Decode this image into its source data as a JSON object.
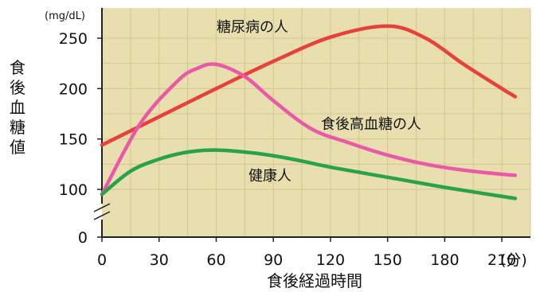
{
  "chart_data": {
    "type": "line",
    "xlabel": "食後経過時間",
    "ylabel": "食後血糖値",
    "y_unit": "(mg/dL)",
    "x_unit": "(分)",
    "xlim": [
      0,
      225
    ],
    "ylim": [
      100,
      270
    ],
    "axis_break": true,
    "grid": true,
    "background": "#e9dfae",
    "x_ticks": [
      "0",
      "30",
      "60",
      "90",
      "120",
      "150",
      "180",
      "210"
    ],
    "y_ticks": [
      "100",
      "150",
      "200",
      "250"
    ],
    "y_zero_label": "0",
    "series": [
      {
        "name": "糖尿病の人",
        "color": "#e8403a",
        "points": [
          [
            0,
            144
          ],
          [
            30,
            172
          ],
          [
            60,
            200
          ],
          [
            90,
            227
          ],
          [
            120,
            251
          ],
          [
            150,
            262
          ],
          [
            170,
            250
          ],
          [
            190,
            224
          ],
          [
            210,
            200
          ],
          [
            217,
            192
          ]
        ]
      },
      {
        "name": "食後高血糖の人",
        "color": "#e85aa8",
        "points": [
          [
            0,
            95
          ],
          [
            20,
            165
          ],
          [
            40,
            208
          ],
          [
            50,
            220
          ],
          [
            60,
            224
          ],
          [
            75,
            212
          ],
          [
            90,
            188
          ],
          [
            110,
            160
          ],
          [
            130,
            146
          ],
          [
            150,
            134
          ],
          [
            170,
            125
          ],
          [
            190,
            119
          ],
          [
            210,
            115
          ],
          [
            217,
            114
          ]
        ]
      },
      {
        "name": "健康人",
        "color": "#27a349",
        "points": [
          [
            0,
            95
          ],
          [
            15,
            118
          ],
          [
            30,
            130
          ],
          [
            45,
            137
          ],
          [
            60,
            139
          ],
          [
            80,
            136
          ],
          [
            100,
            130
          ],
          [
            120,
            122
          ],
          [
            150,
            112
          ],
          [
            180,
            102
          ],
          [
            200,
            96
          ],
          [
            217,
            91
          ]
        ]
      }
    ]
  }
}
